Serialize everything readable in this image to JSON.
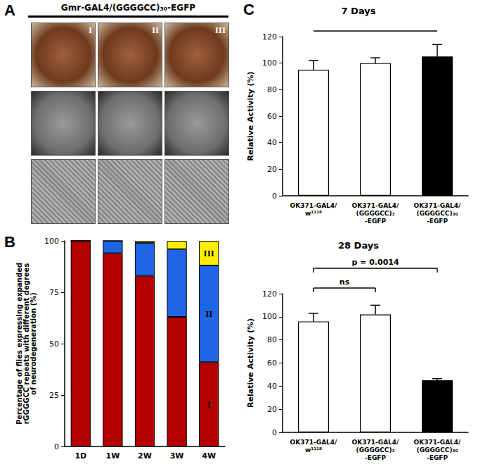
{
  "panel_a": {
    "label": "A",
    "title": "Gmr-GAL4/(GGGGCC)₃₀-EGFP",
    "columns": [
      "I",
      "II",
      "III"
    ]
  },
  "chart_data": [
    {
      "type": "bar",
      "stacked": true,
      "annotations": [
        "B"
      ],
      "grid": false,
      "categories": [
        "1D",
        "1W",
        "2W",
        "3W",
        "4W"
      ],
      "series": [
        {
          "name": "I",
          "color": "#b30000",
          "values": [
            100,
            94,
            83,
            63,
            41
          ]
        },
        {
          "name": "II",
          "color": "#1f66e5",
          "values": [
            0,
            6,
            16,
            33,
            47
          ]
        },
        {
          "name": "III",
          "color": "#ffee00",
          "values": [
            0,
            0,
            1,
            4,
            12
          ]
        }
      ],
      "ylabel": "Percentage of flies expressing expanded\nrGGGGCC repeats with different degrees\nof neurodegeneration (%)",
      "ylim": [
        0,
        100
      ],
      "yticks": [
        0,
        25,
        50,
        75,
        100
      ]
    },
    {
      "type": "bar",
      "title": "7 Days",
      "annotations": [
        "C"
      ],
      "grid": false,
      "categories": [
        "OK371-GAL4/\nw¹¹¹⁸",
        "OK371-GAL4/\n(GGGGCC)₃\n-EGFP",
        "OK371-GAL4/\n(GGGGCC)₃₀\n-EGFP"
      ],
      "values": [
        95,
        100,
        105
      ],
      "errors": [
        7,
        4,
        9
      ],
      "colors": [
        "#ffffff",
        "#ffffff",
        "#000000"
      ],
      "ylabel": "Relative Activity (%)",
      "ylim": [
        0,
        120
      ],
      "yticks": [
        0,
        20,
        40,
        60,
        80,
        100,
        120
      ],
      "comparisons": [
        {
          "from": 0,
          "to": 2
        }
      ]
    },
    {
      "type": "bar",
      "title": "28 Days",
      "grid": false,
      "categories": [
        "OK371-GAL4/\nw¹¹¹⁸",
        "OK371-GAL4/\n(GGGGCC)₃\n-EGFP",
        "OK371-GAL4/\n(GGGGCC)₃₀\n-EGFP"
      ],
      "values": [
        96,
        102,
        45
      ],
      "errors": [
        7,
        8,
        1.5
      ],
      "colors": [
        "#ffffff",
        "#ffffff",
        "#000000"
      ],
      "ylabel": "Relative Activity (%)",
      "ylim": [
        0,
        120
      ],
      "yticks": [
        0,
        20,
        40,
        60,
        80,
        100,
        120
      ],
      "comparisons": [
        {
          "from": 0,
          "to": 2,
          "label": "p = 0.0014"
        },
        {
          "from": 0,
          "to": 1,
          "label": "ns"
        }
      ]
    }
  ]
}
